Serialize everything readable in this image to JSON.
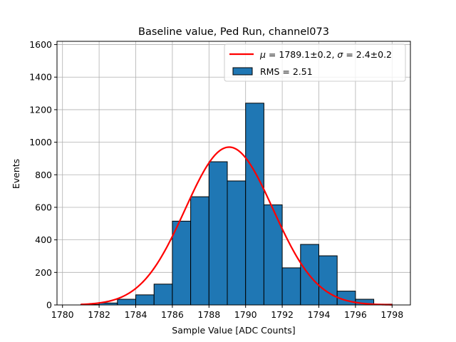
{
  "chart_data": {
    "type": "histogram",
    "title": "Baseline value, Ped Run, channel073",
    "xlabel": "Sample Value [ADC Counts]",
    "ylabel": "Events",
    "xlim": [
      1779.7,
      1799.0
    ],
    "ylim": [
      0,
      1620
    ],
    "xticks": [
      1780,
      1782,
      1784,
      1786,
      1788,
      1790,
      1792,
      1794,
      1796,
      1798
    ],
    "yticks": [
      0,
      200,
      400,
      600,
      800,
      1000,
      1200,
      1400,
      1600
    ],
    "grid": true,
    "bins": {
      "edges": [
        1781.0,
        1782.0,
        1783.0,
        1784.0,
        1785.0,
        1786.0,
        1787.0,
        1788.0,
        1789.0,
        1790.0,
        1791.0,
        1792.0,
        1793.0,
        1794.0,
        1795.0,
        1796.0,
        1797.0,
        1798.0
      ],
      "counts": [
        3,
        12,
        35,
        62,
        128,
        515,
        665,
        880,
        762,
        1240,
        615,
        228,
        372,
        302,
        85,
        35,
        5
      ]
    },
    "fit": {
      "type": "gaussian",
      "mu": 1789.1,
      "sigma": 2.4,
      "amplitude": 970,
      "x_range": [
        1781.0,
        1798.0
      ]
    },
    "legend": {
      "placement": "top-right",
      "entries": [
        {
          "prefix_mu": "μ",
          "eq1": " = 1789.1±0.2, ",
          "prefix_sigma": "σ",
          "eq2": " = 2.4±0.2"
        },
        {
          "label": "RMS = 2.51"
        }
      ]
    },
    "colors": {
      "bar_fill": "#1f77b4",
      "bar_edge": "#000000",
      "fit_line": "#ff0000",
      "grid": "#b0b0b0"
    }
  }
}
